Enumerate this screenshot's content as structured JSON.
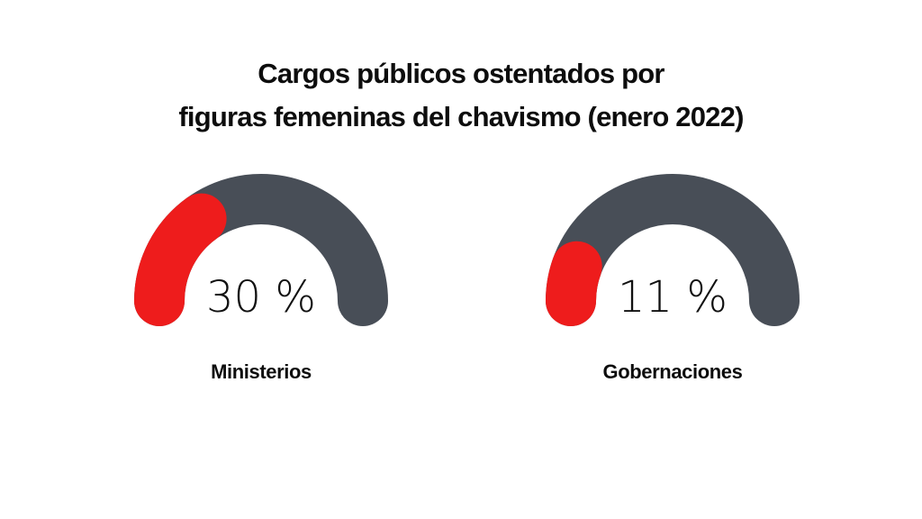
{
  "title": {
    "line1": "Cargos públicos ostentados por",
    "line2": "figuras femeninas del chavismo (enero 2022)"
  },
  "colors": {
    "track": "#484e57",
    "fill": "#ee1c1c"
  },
  "chart_data": {
    "type": "gauge",
    "title": "Cargos públicos ostentados por figuras femeninas del chavismo (enero 2022)",
    "max": 100,
    "unit": "%",
    "series": [
      {
        "name": "Ministerios",
        "value": 30,
        "value_label": "30 %"
      },
      {
        "name": "Gobernaciones",
        "value": 11,
        "value_label": "11 %"
      }
    ]
  }
}
